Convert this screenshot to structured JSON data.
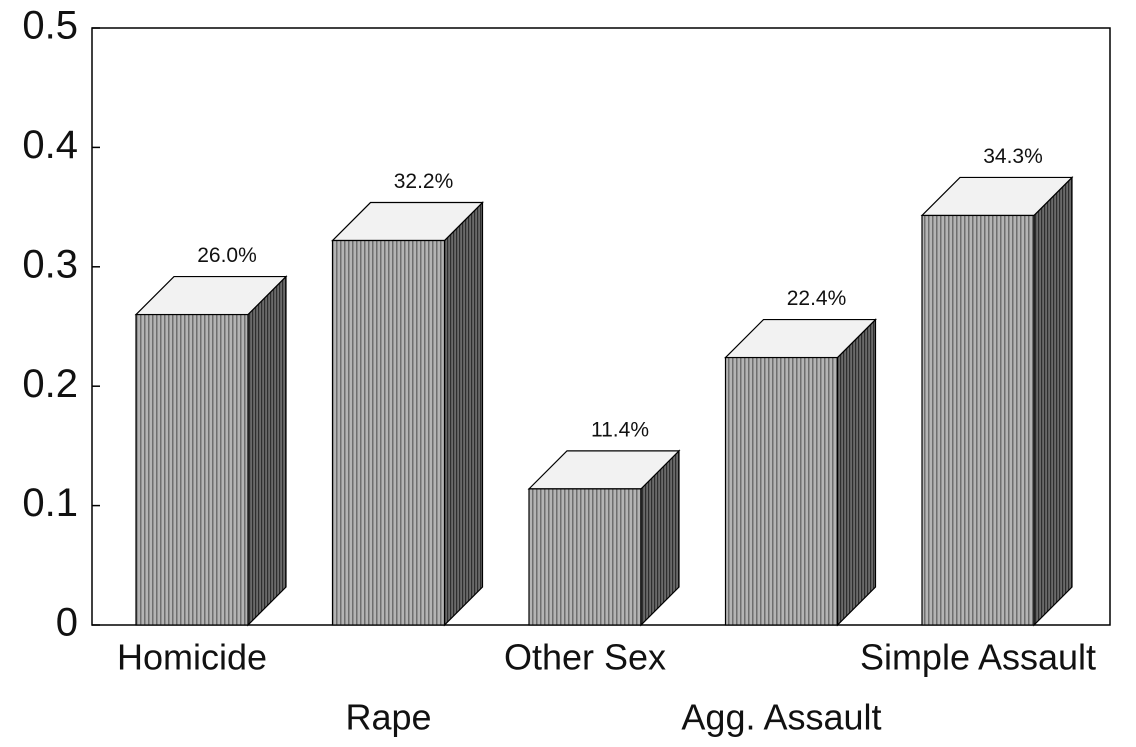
{
  "chart_data": {
    "type": "bar3d",
    "categories": [
      "Homicide",
      "Rape",
      "Other Sex",
      "Agg. Assault",
      "Simple Assault"
    ],
    "values": [
      0.26,
      0.322,
      0.114,
      0.224,
      0.343
    ],
    "value_labels": [
      "26.0%",
      "32.2%",
      "11.4%",
      "22.4%",
      "34.3%"
    ],
    "ylim": [
      0,
      0.5
    ],
    "yticks": [
      0,
      0.1,
      0.2,
      0.3,
      0.4,
      0.5
    ],
    "color": "#9a9a9a"
  }
}
